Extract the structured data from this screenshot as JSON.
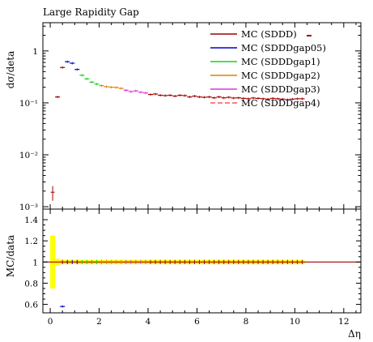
{
  "chart_data": [
    {
      "type": "line",
      "title": "Large Rapidity Gap",
      "ylabel": "dσ/deta",
      "yscale": "log",
      "ylim": [
        0.0009,
        3.5
      ],
      "xlim": [
        -0.3,
        12.7
      ],
      "yticks": [
        "10⁻³",
        "10⁻²",
        "10⁻¹",
        "1"
      ],
      "legend_position": "top-right",
      "data_point": {
        "x": 0.1,
        "y": 0.0019,
        "yerr": [
          0.0013,
          0.0025
        ]
      },
      "series": [
        {
          "name": "MC (SDDD)",
          "color": "#a00000",
          "x": [
            0.1,
            0.3,
            0.5,
            0.7,
            0.9,
            1.1,
            1.3,
            1.5,
            1.7,
            1.9,
            2.1,
            2.3,
            2.5,
            2.7,
            2.9,
            3.1,
            3.3,
            3.5,
            3.7,
            3.9,
            4.1,
            4.3,
            4.5,
            4.7,
            4.9,
            5.1,
            5.3,
            5.5,
            5.7,
            5.9,
            6.1,
            6.3,
            6.5,
            6.7,
            6.9,
            7.1,
            7.3,
            7.5,
            7.7,
            7.9,
            8.1,
            8.3,
            8.5,
            8.7,
            8.9,
            9.1,
            9.3,
            9.5,
            9.7,
            9.9,
            10.1,
            10.3
          ],
          "y": [
            0.0019,
            0.13,
            0.48,
            0.62,
            0.58,
            0.44,
            0.34,
            0.29,
            0.25,
            0.23,
            0.215,
            0.205,
            0.2,
            0.198,
            0.19,
            0.175,
            0.165,
            0.17,
            0.16,
            0.155,
            0.145,
            0.148,
            0.14,
            0.138,
            0.14,
            0.135,
            0.14,
            0.138,
            0.13,
            0.135,
            0.13,
            0.128,
            0.13,
            0.125,
            0.13,
            0.125,
            0.128,
            0.124,
            0.125,
            0.122,
            0.12,
            0.124,
            0.122,
            0.12,
            0.118,
            0.122,
            0.12,
            0.118,
            0.115,
            0.118,
            0.12,
            0.12
          ]
        },
        {
          "name": "MC (SDDDgap05)",
          "color": "#0000d0"
        },
        {
          "name": "MC (SDDDgap1)",
          "color": "#22cc22"
        },
        {
          "name": "MC (SDDDgap2)",
          "color": "#e08000"
        },
        {
          "name": "MC (SDDDgap3)",
          "color": "#dd33dd"
        },
        {
          "name": "MC (SDDDgap4)",
          "color": "#ff5555",
          "dashed": true
        }
      ]
    },
    {
      "type": "line",
      "xlabel": "Δη",
      "ylabel": "MC/data",
      "ylim": [
        0.52,
        1.5
      ],
      "yticks": [
        "0.6",
        "0.8",
        "1",
        "1.2",
        "1.4"
      ],
      "xticks": [
        "0",
        "2",
        "4",
        "6",
        "8",
        "10",
        "12"
      ],
      "ratio_markers": [
        {
          "x": 0.5,
          "y": 0.58
        }
      ],
      "uncertainty_band_color": "#ffff00"
    }
  ]
}
